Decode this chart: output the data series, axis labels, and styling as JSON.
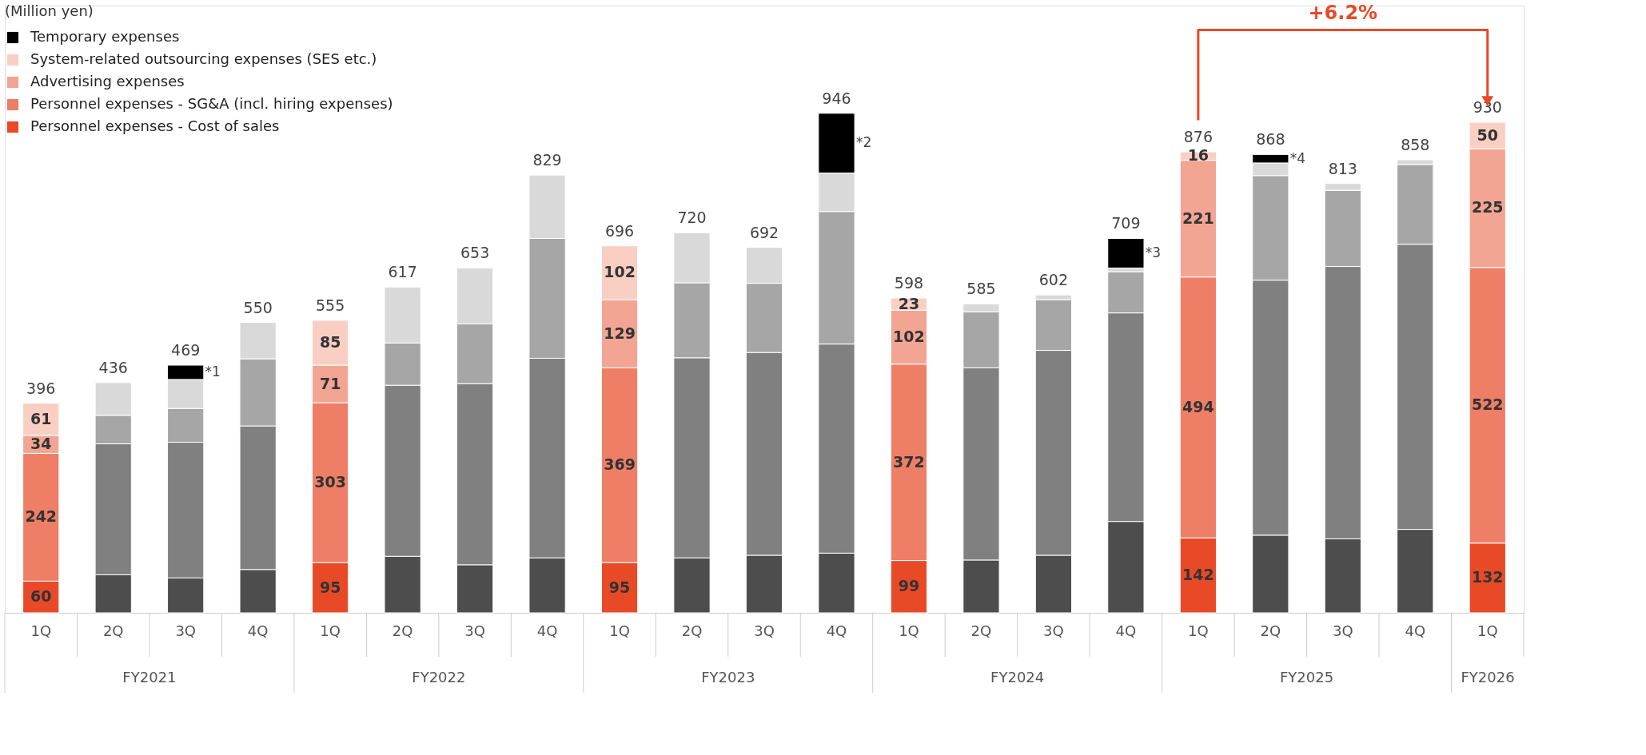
{
  "chart_data": {
    "type": "bar",
    "stacked": true,
    "ylabel": "(Million yen)",
    "categories": [
      "1Q",
      "2Q",
      "3Q",
      "4Q",
      "1Q",
      "2Q",
      "3Q",
      "4Q",
      "1Q",
      "2Q",
      "3Q",
      "4Q",
      "1Q",
      "2Q",
      "3Q",
      "4Q",
      "1Q",
      "2Q",
      "3Q",
      "4Q",
      "1Q"
    ],
    "series": [
      {
        "name": "Personnel expenses - Cost of sales",
        "color": "#e84a27",
        "values": [
          60,
          72,
          66,
          82,
          95,
          107,
          91,
          104,
          95,
          104,
          109,
          113,
          99,
          100,
          109,
          173,
          142,
          147,
          140,
          158,
          132
        ],
        "value_labels": [
          "60",
          null,
          null,
          null,
          "95",
          null,
          null,
          null,
          "95",
          null,
          null,
          null,
          "99",
          null,
          null,
          null,
          "142",
          null,
          null,
          null,
          "132"
        ],
        "colors": [
          "#e84a27",
          "#4d4d4d",
          "#4d4d4d",
          "#4d4d4d",
          "#e84a27",
          "#4d4d4d",
          "#4d4d4d",
          "#4d4d4d",
          "#e84a27",
          "#4d4d4d",
          "#4d4d4d",
          "#4d4d4d",
          "#e84a27",
          "#4d4d4d",
          "#4d4d4d",
          "#4d4d4d",
          "#e84a27",
          "#4d4d4d",
          "#4d4d4d",
          "#4d4d4d",
          "#e84a27"
        ]
      },
      {
        "name": "Personnel expenses - SG&A (incl. hiring expenses)",
        "color": "#ee7f66",
        "values": [
          242,
          248,
          257,
          272,
          303,
          324,
          343,
          378,
          369,
          379,
          384,
          396,
          372,
          364,
          388,
          395,
          494,
          483,
          516,
          540,
          522
        ],
        "value_labels": [
          "242",
          null,
          null,
          null,
          "303",
          null,
          null,
          null,
          "369",
          null,
          null,
          null,
          "372",
          null,
          null,
          null,
          "494",
          null,
          null,
          null,
          "522"
        ],
        "colors": [
          "#ee7f66",
          "#808080",
          "#808080",
          "#808080",
          "#ee7f66",
          "#808080",
          "#808080",
          "#808080",
          "#ee7f66",
          "#808080",
          "#808080",
          "#808080",
          "#ee7f66",
          "#808080",
          "#808080",
          "#808080",
          "#ee7f66",
          "#808080",
          "#808080",
          "#808080",
          "#ee7f66"
        ]
      },
      {
        "name": "Advertising expenses",
        "color": "#f2a593",
        "values": [
          34,
          54,
          64,
          127,
          71,
          80,
          113,
          227,
          129,
          142,
          131,
          251,
          102,
          106,
          96,
          78,
          221,
          198,
          144,
          151,
          225
        ],
        "value_labels": [
          "34",
          null,
          null,
          null,
          "71",
          null,
          null,
          null,
          "129",
          null,
          null,
          null,
          "102",
          null,
          null,
          null,
          "221",
          null,
          null,
          null,
          "225"
        ],
        "colors": [
          "#f2a593",
          "#a6a6a6",
          "#a6a6a6",
          "#a6a6a6",
          "#f2a593",
          "#a6a6a6",
          "#a6a6a6",
          "#a6a6a6",
          "#f2a593",
          "#a6a6a6",
          "#a6a6a6",
          "#a6a6a6",
          "#f2a593",
          "#a6a6a6",
          "#a6a6a6",
          "#a6a6a6",
          "#f2a593",
          "#a6a6a6",
          "#a6a6a6",
          "#a6a6a6",
          "#f2a593"
        ]
      },
      {
        "name": "System-related outsourcing expenses (SES etc.)",
        "color": "#f9cfc4",
        "values": [
          61,
          62,
          55,
          69,
          85,
          106,
          106,
          120,
          102,
          95,
          68,
          73,
          23,
          15,
          9,
          7,
          16,
          24,
          13,
          9,
          50
        ],
        "value_labels": [
          "61",
          null,
          null,
          null,
          "85",
          null,
          null,
          null,
          "102",
          null,
          null,
          null,
          "23",
          null,
          null,
          null,
          "16",
          null,
          null,
          null,
          "50"
        ],
        "colors": [
          "#f9cfc4",
          "#d9d9d9",
          "#d9d9d9",
          "#d9d9d9",
          "#f9cfc4",
          "#d9d9d9",
          "#d9d9d9",
          "#d9d9d9",
          "#f9cfc4",
          "#d9d9d9",
          "#d9d9d9",
          "#d9d9d9",
          "#f9cfc4",
          "#d9d9d9",
          "#d9d9d9",
          "#d9d9d9",
          "#f9cfc4",
          "#d9d9d9",
          "#d9d9d9",
          "#d9d9d9",
          "#f9cfc4"
        ]
      },
      {
        "name": "Temporary expenses",
        "color": "#000000",
        "values": [
          null,
          null,
          27,
          null,
          null,
          null,
          null,
          null,
          null,
          null,
          null,
          113,
          null,
          null,
          null,
          56,
          null,
          16,
          null,
          null,
          null
        ],
        "colors": [
          "#000000",
          "#000000",
          "#000000",
          "#000000",
          "#000000",
          "#000000",
          "#000000",
          "#000000",
          "#000000",
          "#000000",
          "#000000",
          "#000000",
          "#000000",
          "#000000",
          "#000000",
          "#000000",
          "#000000",
          "#000000",
          "#000000",
          "#000000",
          "#000000"
        ]
      }
    ],
    "totals": [
      "396",
      "436",
      "469",
      "550",
      "555",
      "617",
      "653",
      "829",
      "696",
      "720",
      "692",
      "946",
      "598",
      "585",
      "602",
      "709",
      "876",
      "868",
      "813",
      "858",
      "930"
    ],
    "annotations": [
      "FY2021",
      "FY2022",
      "FY2023",
      "FY2024",
      "FY2025",
      "FY2026",
      "*1",
      "*2",
      "*3",
      "*4",
      "+6.2%"
    ],
    "ylim": [
      0,
      1150
    ],
    "tick_labels": "x",
    "legend": "top left",
    "grid": false
  }
}
